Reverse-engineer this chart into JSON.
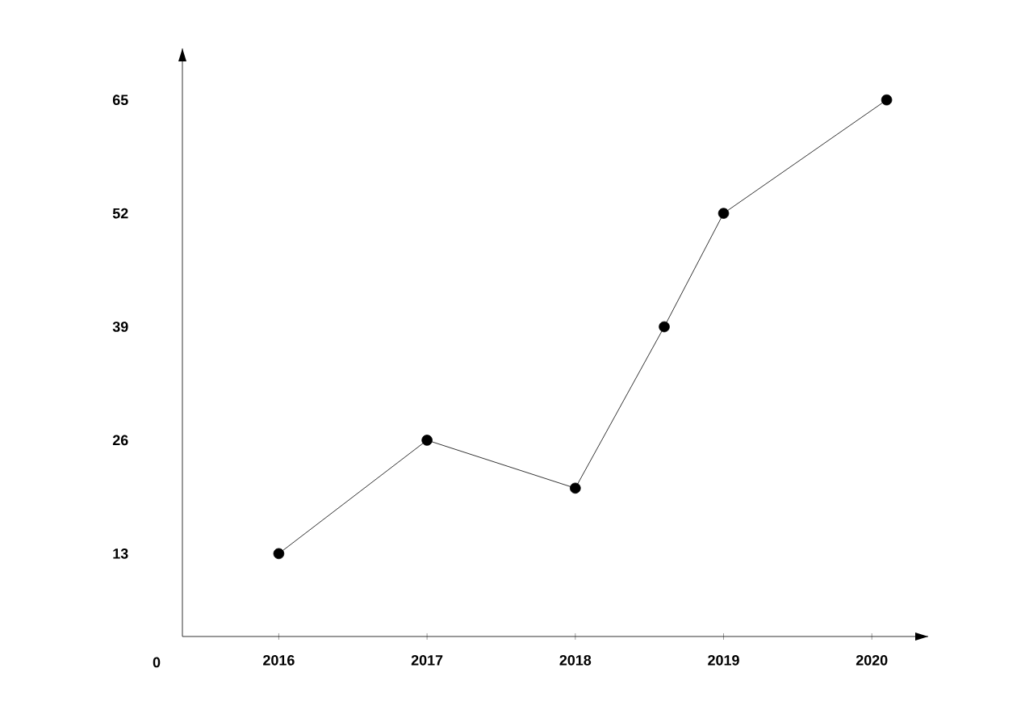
{
  "chart_data": {
    "type": "line",
    "x": [
      2016,
      2017,
      2018,
      2018.6,
      2019,
      2020.1
    ],
    "values": [
      13,
      26,
      20.5,
      39,
      52,
      65
    ],
    "color": "#000000",
    "marker": "circle",
    "xlim": [
      2015.35,
      2020.38
    ],
    "xticks": [
      2016,
      2017,
      2018,
      2019,
      2020
    ],
    "ylim": [
      3.5,
      70.9
    ],
    "yticks": [
      13,
      26,
      39,
      52,
      65
    ],
    "annotations": [
      "0"
    ]
  }
}
